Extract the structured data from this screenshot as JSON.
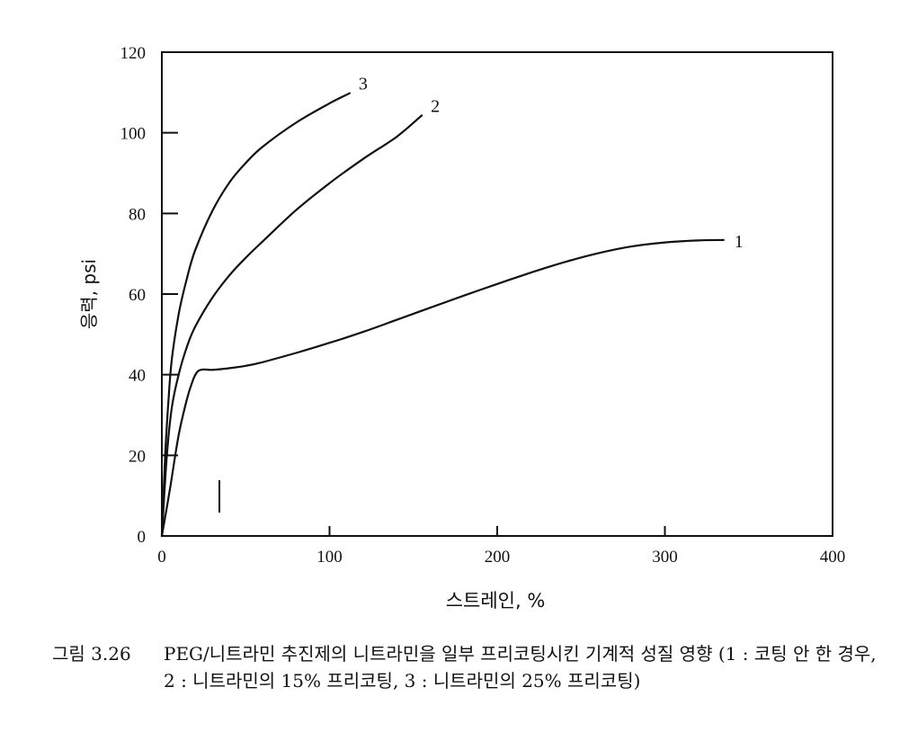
{
  "chart_data": {
    "type": "line",
    "xlabel": "스트레인, %",
    "ylabel": "응력, psi",
    "xlim": [
      0,
      400
    ],
    "ylim": [
      0,
      120
    ],
    "x_ticks": [
      "0",
      "100",
      "200",
      "300",
      "400"
    ],
    "y_ticks": [
      "0",
      "20",
      "40",
      "60",
      "80",
      "100",
      "120"
    ],
    "grid": false,
    "series": [
      {
        "name": "1",
        "x": [
          0,
          5,
          10,
          15,
          18,
          20,
          22,
          25,
          30,
          40,
          50,
          60,
          80,
          100,
          120,
          140,
          160,
          180,
          200,
          220,
          240,
          260,
          280,
          300,
          320,
          335
        ],
        "y": [
          0,
          12,
          25,
          34,
          38,
          40,
          41,
          41.3,
          41.2,
          41.6,
          42.2,
          43.1,
          45.4,
          47.9,
          50.6,
          53.6,
          56.6,
          59.6,
          62.5,
          65.3,
          67.9,
          70.1,
          71.8,
          72.8,
          73.3,
          73.4
        ]
      },
      {
        "name": "2",
        "x": [
          0,
          3,
          6,
          10,
          15,
          20,
          30,
          40,
          50,
          60,
          80,
          100,
          120,
          140,
          155
        ],
        "y": [
          0,
          20,
          32,
          40,
          47,
          52,
          59,
          64.5,
          69,
          73,
          80.8,
          87.5,
          93.5,
          99,
          104.3
        ]
      },
      {
        "name": "3",
        "x": [
          0,
          2,
          4,
          6,
          10,
          15,
          20,
          30,
          40,
          50,
          60,
          80,
          100,
          112
        ],
        "y": [
          0,
          20,
          34,
          44,
          55,
          64,
          71,
          80.5,
          87.5,
          92.5,
          96.5,
          102.5,
          107.3,
          109.8
        ]
      }
    ],
    "annotations": [
      "3",
      "2",
      "1"
    ]
  },
  "caption": {
    "label": "그림 3.26",
    "text": "PEG/니트라민 추진제의 니트라민을 일부 프리코팅시킨 기계적 성질 영향 (1 : 코팅 안 한 경우, 2 : 니트라민의 15% 프리코팅, 3 : 니트라민의 25% 프리코팅)"
  }
}
